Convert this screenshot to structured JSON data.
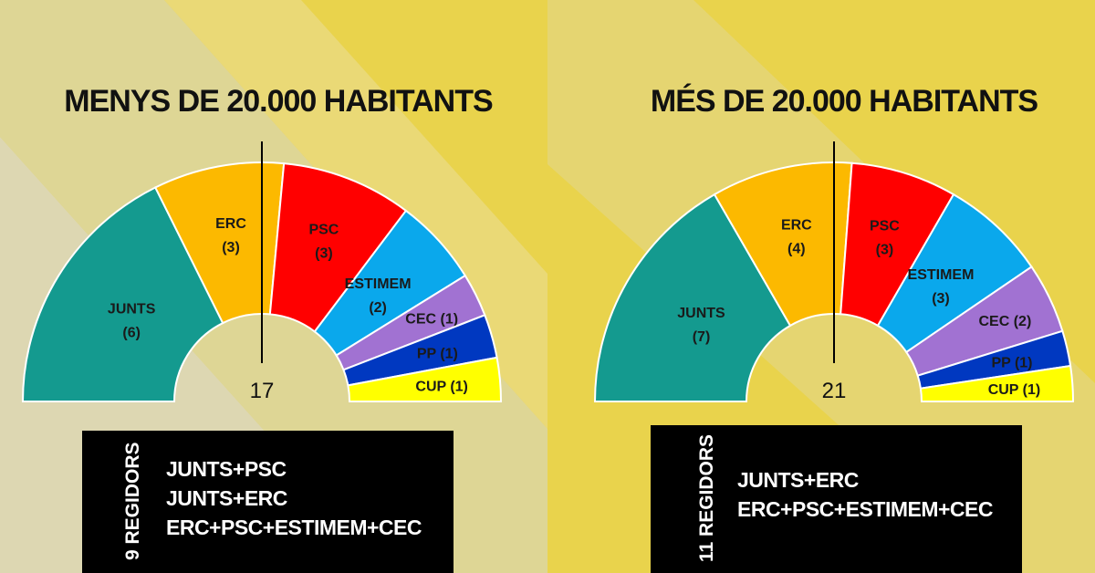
{
  "colors": {
    "JUNTS": "#149a8f",
    "ERC": "#fcb900",
    "PSC": "#ff0000",
    "ESTIMEM": "#0aa8ec",
    "CEC": "#a172d2",
    "PP": "#0038c0",
    "CUP": "#ffff00"
  },
  "chart_data": [
    {
      "type": "parliament",
      "title": "MENYS DE 20.000 HABITANTS",
      "majority_label": "17",
      "slices": [
        {
          "label": "JUNTS",
          "value_label": "(6)",
          "value": 6
        },
        {
          "label": "ERC",
          "value_label": "(3)",
          "value": 3
        },
        {
          "label": "PSC",
          "value_label": "(3)",
          "value": 3
        },
        {
          "label": "ESTIMEM",
          "value_label": "(2)",
          "value": 2
        },
        {
          "label": "CEC (1)",
          "value_label": "",
          "value": 1
        },
        {
          "label": "PP (1)",
          "value_label": "",
          "value": 1
        },
        {
          "label": "CUP (1)",
          "value_label": "",
          "value": 1
        }
      ]
    },
    {
      "type": "parliament",
      "title": "MÉS DE 20.000 HABITANTS",
      "majority_label": "21",
      "slices": [
        {
          "label": "JUNTS",
          "value_label": "(7)",
          "value": 7
        },
        {
          "label": "ERC",
          "value_label": "(4)",
          "value": 4
        },
        {
          "label": "PSC",
          "value_label": "(3)",
          "value": 3
        },
        {
          "label": "ESTIMEM",
          "value_label": "(3)",
          "value": 3
        },
        {
          "label": "CEC (2)",
          "value_label": "",
          "value": 2
        },
        {
          "label": "PP (1)",
          "value_label": "",
          "value": 1
        },
        {
          "label": "CUP (1)",
          "value_label": "",
          "value": 1
        }
      ]
    }
  ],
  "boxes": [
    {
      "side_label": "9 REGIDORS",
      "combinations": [
        "JUNTS+PSC",
        "JUNTS+ERC",
        "ERC+PSC+ESTIMEM+CEC"
      ]
    },
    {
      "side_label": "11 REGIDORS",
      "combinations": [
        "JUNTS+ERC",
        "ERC+PSC+ESTIMEM+CEC"
      ]
    }
  ]
}
